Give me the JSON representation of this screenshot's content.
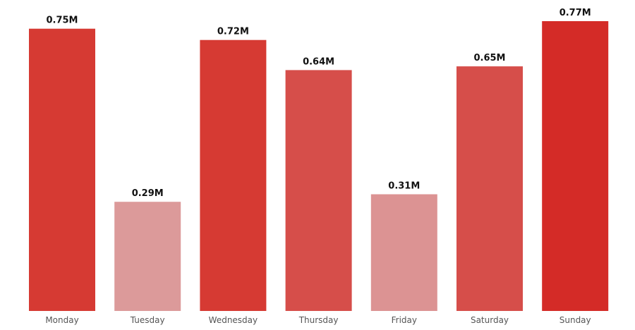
{
  "chart_data": {
    "type": "bar",
    "categories": [
      "Monday",
      "Tuesday",
      "Wednesday",
      "Thursday",
      "Friday",
      "Saturday",
      "Sunday"
    ],
    "values": [
      0.75,
      0.29,
      0.72,
      0.64,
      0.31,
      0.65,
      0.77
    ],
    "value_labels": [
      "0.75M",
      "0.29M",
      "0.72M",
      "0.64M",
      "0.31M",
      "0.65M",
      "0.77M"
    ],
    "unit": "M",
    "title": "",
    "xlabel": "",
    "ylabel": "",
    "ylim": [
      0,
      0.77
    ],
    "grid": false,
    "legend": "none",
    "bar_colors": [
      "#d63a33",
      "#dc9a9a",
      "#d63a33",
      "#d64e4a",
      "#dc9393",
      "#d64e4a",
      "#d42b27"
    ]
  }
}
